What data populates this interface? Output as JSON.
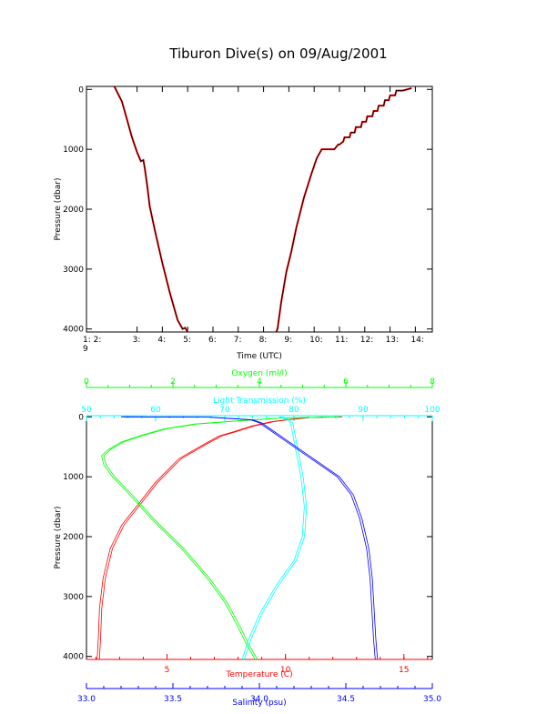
{
  "title": "Tiburon Dive(s) on 09/Aug/2001",
  "colors": {
    "axes": "#000000",
    "temperature": "#ff0000",
    "oxygen": "#00ff00",
    "transmission": "#00ffff",
    "salinity": "#0000ff",
    "dive_trace_outer": "#ff0000",
    "dive_trace_inner": "#000000"
  },
  "chart_data": [
    {
      "type": "line",
      "title": "Tiburon Dive(s) on 09/Aug/2001",
      "xlabel": "Time (UTC)",
      "ylabel": "Pressure (dbar)",
      "xlim": [
        1.0,
        14.67
      ],
      "ylim": [
        4050,
        -50
      ],
      "x_ticks": [
        "1: 2:",
        "3:",
        "4:",
        "5:",
        "6:",
        "7:",
        "8:",
        "9:",
        "10:",
        "11:",
        "12:",
        "13:",
        "14:"
      ],
      "x_tick_extra": "9",
      "y_ticks": [
        "0",
        "1000",
        "2000",
        "3000",
        "4000"
      ],
      "series": [
        {
          "x": [
            2.1,
            2.4,
            2.6,
            2.8,
            3.0,
            3.15,
            3.25,
            3.3,
            3.4,
            3.5,
            3.7,
            4.0,
            4.3,
            4.6,
            4.8,
            4.9,
            5.0,
            5.05
          ],
          "y": [
            -50,
            200,
            500,
            800,
            1050,
            1200,
            1180,
            1300,
            1600,
            1950,
            2350,
            2900,
            3400,
            3850,
            4000,
            3980,
            4050,
            4060
          ]
        },
        {
          "x": [
            8.5,
            8.55,
            8.7,
            8.9,
            9.1,
            9.3,
            9.6,
            9.9,
            10.1,
            10.3,
            10.6,
            10.8,
            10.95,
            11.0,
            11.15,
            11.2,
            11.4,
            11.45,
            11.6,
            11.65,
            11.85,
            11.9,
            12.05,
            12.1,
            12.3,
            12.35,
            12.5,
            12.55,
            12.75,
            12.8,
            12.95,
            13.0,
            13.2,
            13.25,
            13.5,
            13.85
          ],
          "y": [
            4050,
            4000,
            3550,
            3050,
            2700,
            2300,
            1800,
            1400,
            1150,
            1000,
            1000,
            1000,
            920,
            920,
            870,
            800,
            800,
            720,
            720,
            630,
            630,
            540,
            540,
            450,
            450,
            360,
            360,
            270,
            270,
            180,
            180,
            100,
            100,
            20,
            20,
            -20
          ]
        }
      ]
    },
    {
      "type": "line",
      "ylabel": "Pressure (dbar)",
      "ylim": [
        4050,
        -20
      ],
      "y_ticks": [
        "0",
        "1000",
        "2000",
        "3000",
        "4000"
      ],
      "axes": {
        "oxygen": {
          "label": "Oxygen (ml/l)",
          "lim": [
            0,
            8
          ],
          "ticks": [
            "0",
            "2",
            "4",
            "6",
            "8"
          ],
          "position": "top"
        },
        "transmission": {
          "label": "Light Transmission (%)",
          "lim": [
            50,
            100
          ],
          "ticks": [
            "50",
            "60",
            "70",
            "80",
            "90",
            "100"
          ],
          "position": "top"
        },
        "temperature": {
          "label": "Temperature (C)",
          "lim": [
            1.6,
            16.2
          ],
          "ticks": [
            "5",
            "10",
            "15"
          ],
          "position": "bottom"
        },
        "salinity": {
          "label": "Salinity (psu)",
          "lim": [
            33.0,
            35.0
          ],
          "ticks": [
            "33.0",
            "33.5",
            "34.0",
            "34.5",
            "35.0"
          ],
          "position": "bottom"
        }
      },
      "series": [
        {
          "name": "Temperature (C)",
          "axis": "temperature",
          "points": [
            [
              12.3,
              0
            ],
            [
              11.0,
              10
            ],
            [
              10.0,
              50
            ],
            [
              9.4,
              80
            ],
            [
              8.6,
              150
            ],
            [
              7.8,
              250
            ],
            [
              7.2,
              320
            ],
            [
              6.6,
              450
            ],
            [
              5.5,
              700
            ],
            [
              4.5,
              1100
            ],
            [
              3.7,
              1500
            ],
            [
              3.1,
              1800
            ],
            [
              2.6,
              2200
            ],
            [
              2.3,
              2700
            ],
            [
              2.15,
              3200
            ],
            [
              2.1,
              3700
            ],
            [
              2.05,
              4050
            ]
          ]
        },
        {
          "name": "Oxygen (ml/l)",
          "axis": "oxygen",
          "points": [
            [
              5.8,
              0
            ],
            [
              4.5,
              20
            ],
            [
              3.6,
              60
            ],
            [
              2.5,
              120
            ],
            [
              1.8,
              200
            ],
            [
              1.3,
              300
            ],
            [
              0.8,
              420
            ],
            [
              0.5,
              550
            ],
            [
              0.35,
              650
            ],
            [
              0.4,
              800
            ],
            [
              0.6,
              1000
            ],
            [
              1.0,
              1300
            ],
            [
              1.5,
              1700
            ],
            [
              2.2,
              2200
            ],
            [
              2.8,
              2700
            ],
            [
              3.2,
              3100
            ],
            [
              3.5,
              3500
            ],
            [
              3.7,
              3800
            ],
            [
              3.9,
              4050
            ]
          ]
        },
        {
          "name": "Light Transmission (%)",
          "axis": "transmission",
          "points": [
            [
              78.0,
              0
            ],
            [
              79.0,
              50
            ],
            [
              79.5,
              100
            ],
            [
              80.0,
              400
            ],
            [
              80.5,
              700
            ],
            [
              81.0,
              1000
            ],
            [
              81.5,
              1500
            ],
            [
              81.2,
              2000
            ],
            [
              80.0,
              2400
            ],
            [
              77.5,
              2800
            ],
            [
              75.0,
              3300
            ],
            [
              73.5,
              3700
            ],
            [
              72.5,
              4050
            ]
          ]
        },
        {
          "name": "Salinity (psu)",
          "axis": "salinity",
          "points": [
            [
              33.2,
              0
            ],
            [
              33.7,
              5
            ],
            [
              33.95,
              50
            ],
            [
              34.0,
              100
            ],
            [
              34.05,
              200
            ],
            [
              34.15,
              400
            ],
            [
              34.3,
              700
            ],
            [
              34.45,
              1000
            ],
            [
              34.53,
              1300
            ],
            [
              34.58,
              1700
            ],
            [
              34.62,
              2200
            ],
            [
              34.64,
              2700
            ],
            [
              34.65,
              3200
            ],
            [
              34.66,
              3700
            ],
            [
              34.67,
              4050
            ]
          ]
        }
      ]
    }
  ]
}
